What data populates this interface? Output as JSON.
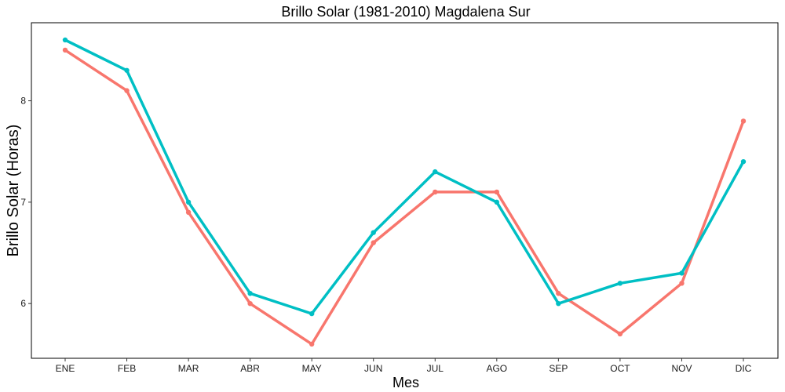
{
  "chart_data": {
    "type": "line",
    "title": "Brillo Solar (1981-2010)  Magdalena Sur",
    "xlabel": "Mes",
    "ylabel": "Brillo Solar (Horas)",
    "categories": [
      "ENE",
      "FEB",
      "MAR",
      "ABR",
      "MAY",
      "JUN",
      "JUL",
      "AGO",
      "SEP",
      "OCT",
      "NOV",
      "DIC"
    ],
    "yticks": [
      6,
      7,
      8
    ],
    "ylim": [
      5.46,
      8.77
    ],
    "grid": false,
    "legend": "none",
    "series": [
      {
        "color": "#F8766D",
        "values": [
          8.5,
          8.1,
          6.9,
          6.0,
          5.6,
          6.6,
          7.1,
          7.1,
          6.1,
          5.7,
          6.2,
          7.8
        ]
      },
      {
        "color": "#00BFC4",
        "values": [
          8.6,
          8.3,
          7.0,
          6.1,
          5.9,
          6.7,
          7.3,
          7.0,
          6.0,
          6.2,
          6.3,
          7.4
        ]
      }
    ]
  }
}
